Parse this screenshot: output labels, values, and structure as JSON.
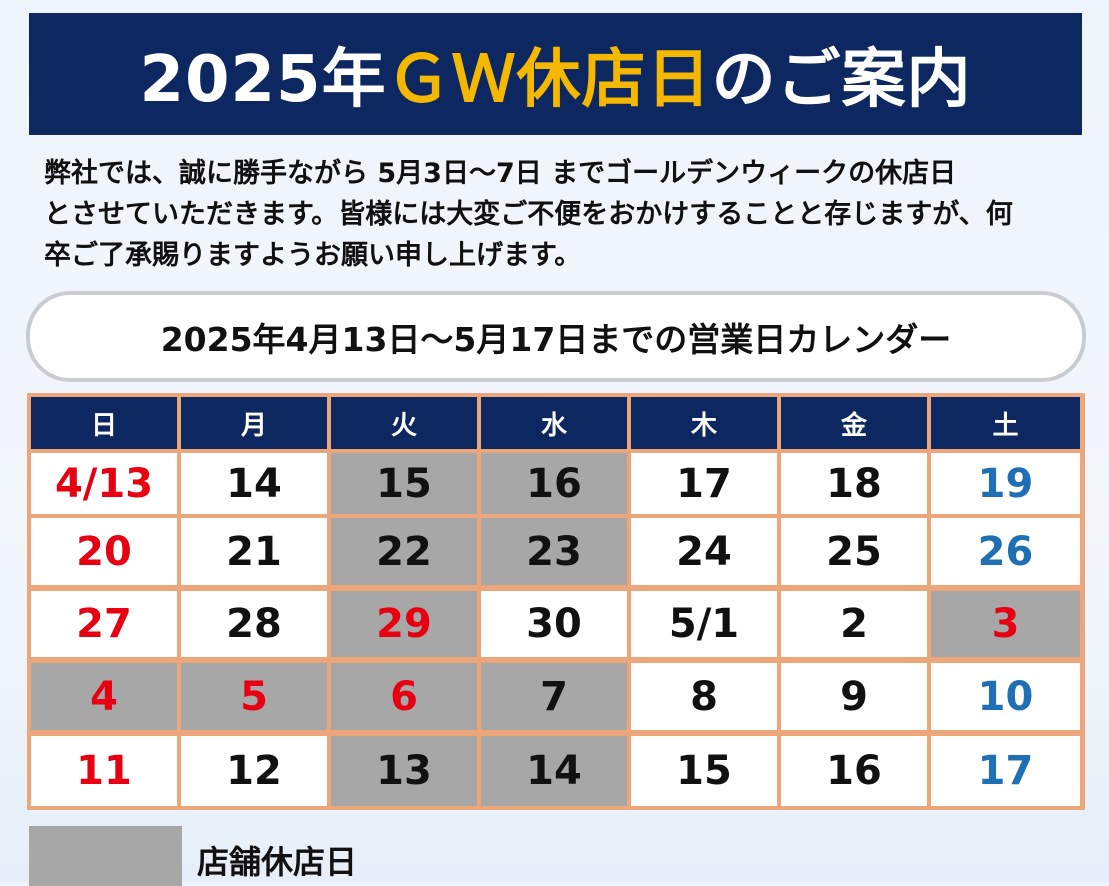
{
  "header": {
    "year_text": "2025年",
    "highlight_text": "ＧＷ休店日",
    "tail_text": "のご案内",
    "colors": {
      "background": "#0d2761",
      "highlight": "#f5b800",
      "text": "#ffffff"
    }
  },
  "intro": {
    "lines": [
      "弊社では、誠に勝手ながら 5月3日～7日 までゴールデンウィークの休店日",
      "とさせていただきます。皆様には大変ご不便をおかけすることと存じますが、何",
      "卒ご了承賜りますようお願い申し上げます。"
    ]
  },
  "calendar_title": "2025年4月13日～5月17日までの営業日カレンダー",
  "calendar": {
    "weekdays": [
      "日",
      "月",
      "火",
      "水",
      "木",
      "金",
      "土"
    ],
    "colors": {
      "closed": "#a7a7a7",
      "open": "#ffffff",
      "red": "#e60012",
      "blue": "#1f6fb4",
      "border": "#eca67a"
    },
    "weeks": [
      [
        {
          "label": "4/13",
          "color": "red",
          "closed": false
        },
        {
          "label": "14",
          "color": "black",
          "closed": false
        },
        {
          "label": "15",
          "color": "black",
          "closed": true
        },
        {
          "label": "16",
          "color": "black",
          "closed": true
        },
        {
          "label": "17",
          "color": "black",
          "closed": false
        },
        {
          "label": "18",
          "color": "black",
          "closed": false
        },
        {
          "label": "19",
          "color": "blue",
          "closed": false
        }
      ],
      [
        {
          "label": "20",
          "color": "red",
          "closed": false
        },
        {
          "label": "21",
          "color": "black",
          "closed": false
        },
        {
          "label": "22",
          "color": "black",
          "closed": true
        },
        {
          "label": "23",
          "color": "black",
          "closed": true
        },
        {
          "label": "24",
          "color": "black",
          "closed": false
        },
        {
          "label": "25",
          "color": "black",
          "closed": false
        },
        {
          "label": "26",
          "color": "blue",
          "closed": false
        }
      ],
      [
        {
          "label": "27",
          "color": "red",
          "closed": false
        },
        {
          "label": "28",
          "color": "black",
          "closed": false
        },
        {
          "label": "29",
          "color": "red",
          "closed": true
        },
        {
          "label": "30",
          "color": "black",
          "closed": false
        },
        {
          "label": "5/1",
          "color": "black",
          "closed": false
        },
        {
          "label": "2",
          "color": "black",
          "closed": false
        },
        {
          "label": "3",
          "color": "red",
          "closed": true
        }
      ],
      [
        {
          "label": "4",
          "color": "red",
          "closed": true
        },
        {
          "label": "5",
          "color": "red",
          "closed": true
        },
        {
          "label": "6",
          "color": "red",
          "closed": true
        },
        {
          "label": "7",
          "color": "black",
          "closed": true
        },
        {
          "label": "8",
          "color": "black",
          "closed": false
        },
        {
          "label": "9",
          "color": "black",
          "closed": false
        },
        {
          "label": "10",
          "color": "blue",
          "closed": false
        }
      ],
      [
        {
          "label": "11",
          "color": "red",
          "closed": false
        },
        {
          "label": "12",
          "color": "black",
          "closed": false
        },
        {
          "label": "13",
          "color": "black",
          "closed": true
        },
        {
          "label": "14",
          "color": "black",
          "closed": true
        },
        {
          "label": "15",
          "color": "black",
          "closed": false
        },
        {
          "label": "16",
          "color": "black",
          "closed": false
        },
        {
          "label": "17",
          "color": "blue",
          "closed": false
        }
      ]
    ]
  },
  "legend": {
    "label": "店舗休店日"
  }
}
